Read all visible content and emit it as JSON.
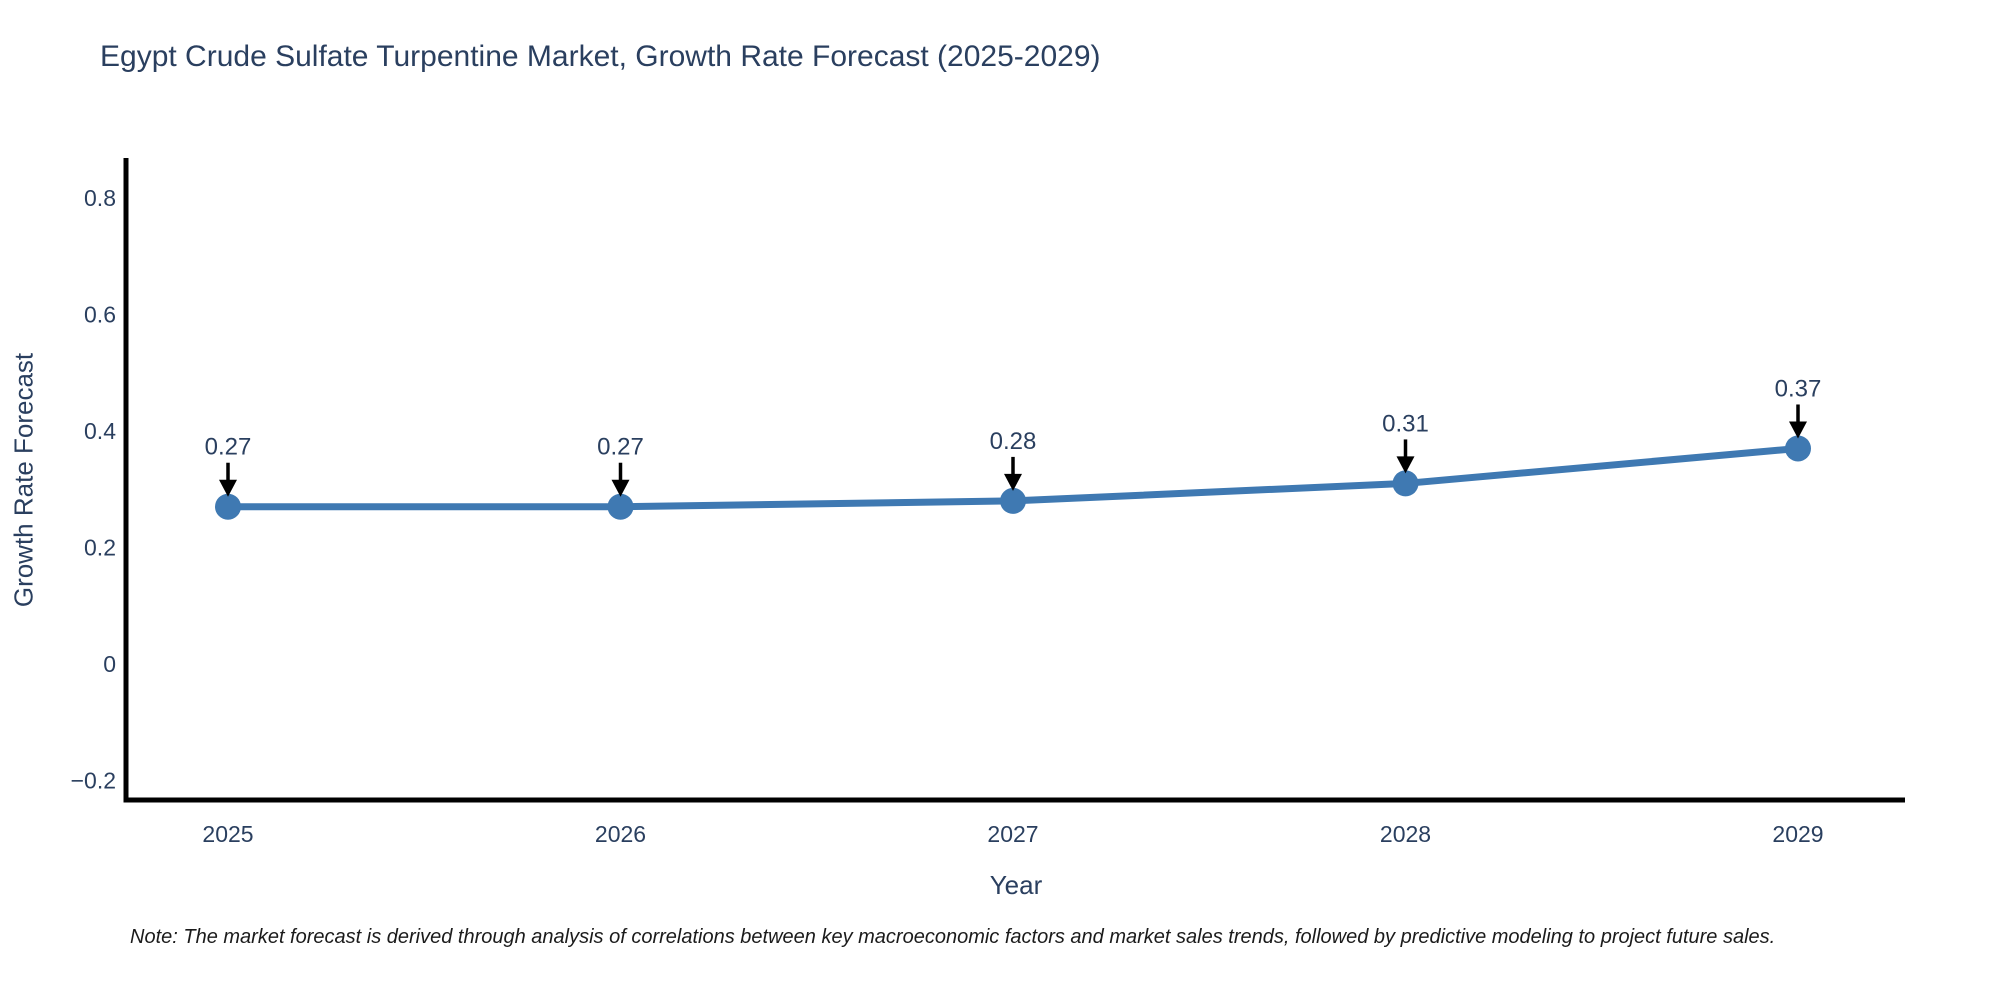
{
  "title": "Egypt Crude Sulfate Turpentine Market, Growth Rate Forecast (2025-2029)",
  "note": "Note: The market forecast is derived through analysis of correlations between key macroeconomic factors and market sales trends, followed by predictive modeling to project future sales.",
  "colors": {
    "text": "#2a3f5f",
    "line": "#3f79b2",
    "marker": "#3f79b2",
    "axis": "#000000",
    "arrow": "#000000",
    "note_text": "#1b1b1b",
    "background": "#ffffff"
  },
  "chart_data": {
    "type": "line",
    "title": "Egypt Crude Sulfate Turpentine Market, Growth Rate Forecast (2025-2029)",
    "x": [
      2025,
      2026,
      2027,
      2028,
      2029
    ],
    "y": [
      0.27,
      0.27,
      0.28,
      0.31,
      0.37
    ],
    "annotations": [
      "0.27",
      "0.27",
      "0.28",
      "0.31",
      "0.37"
    ],
    "annotation_arrows": true,
    "xlabel": "Year",
    "ylabel": "Growth Rate Forecast",
    "x_ticks": [
      "2025",
      "2026",
      "2027",
      "2028",
      "2029"
    ],
    "y_ticks": [
      "0.8",
      "0.6",
      "0.4",
      "0.2",
      "0",
      "−0.2"
    ],
    "y_tick_values": [
      0.8,
      0.6,
      0.4,
      0.2,
      0,
      -0.2
    ],
    "ylim": [
      -0.24,
      0.87
    ],
    "grid": false,
    "legend": false,
    "marker_style": "circle"
  }
}
